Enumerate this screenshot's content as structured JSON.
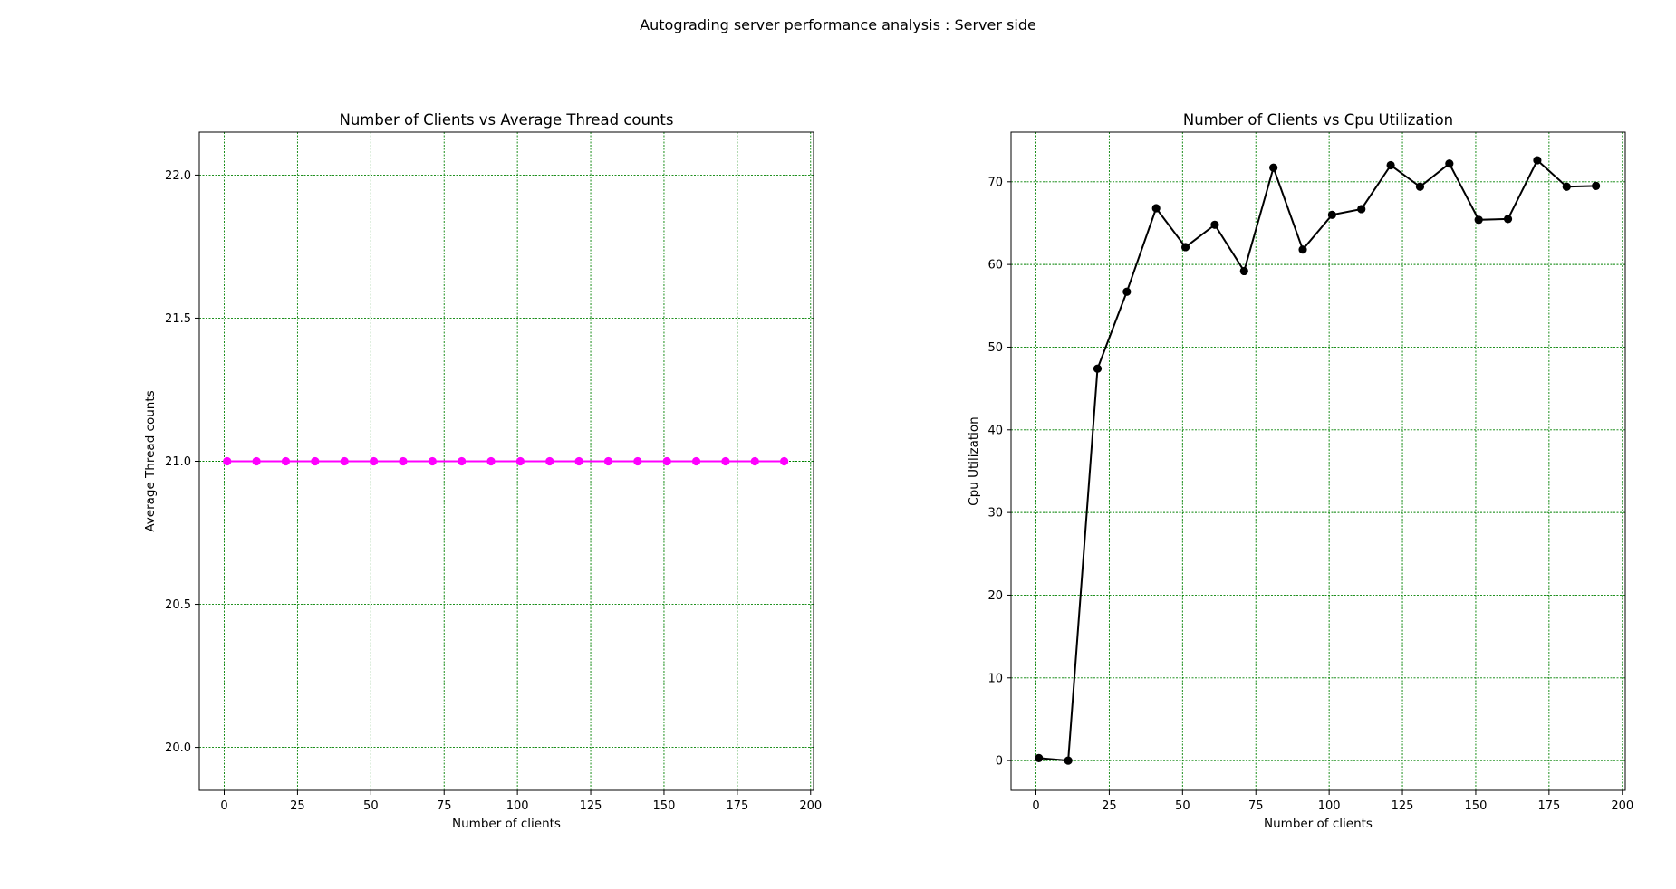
{
  "figure": {
    "suptitle": "Autograding server performance analysis : Server side",
    "grid_color": "#008000",
    "axes_color": "#000000"
  },
  "chart_data": [
    {
      "type": "line",
      "title": "Number of Clients vs Average Thread counts",
      "xlabel": "Number of clients",
      "ylabel": "Average Thread counts",
      "xlim": [
        -8.5,
        201
      ],
      "ylim": [
        19.85,
        22.15
      ],
      "xticks": [
        0,
        25,
        50,
        75,
        100,
        125,
        150,
        175,
        200
      ],
      "yticks": [
        20.0,
        20.5,
        21.0,
        21.5,
        22.0
      ],
      "ytick_labels": [
        "20.0",
        "20.5",
        "21.0",
        "21.5",
        "22.0"
      ],
      "grid": true,
      "legend": "none",
      "series": [
        {
          "color": "#ff00ff",
          "marker": "circle",
          "x": [
            1,
            11,
            21,
            31,
            41,
            51,
            61,
            71,
            81,
            91,
            101,
            111,
            121,
            131,
            141,
            151,
            161,
            171,
            181,
            191
          ],
          "y": [
            21,
            21,
            21,
            21,
            21,
            21,
            21,
            21,
            21,
            21,
            21,
            21,
            21,
            21,
            21,
            21,
            21,
            21,
            21,
            21
          ]
        }
      ]
    },
    {
      "type": "line",
      "title": "Number of Clients vs Cpu Utilization",
      "xlabel": "Number of clients",
      "ylabel": "Cpu Utilization",
      "xlim": [
        -8.5,
        201
      ],
      "ylim": [
        -3.6,
        76.0
      ],
      "xticks": [
        0,
        25,
        50,
        75,
        100,
        125,
        150,
        175,
        200
      ],
      "yticks": [
        0,
        10,
        20,
        30,
        40,
        50,
        60,
        70
      ],
      "ytick_labels": [
        "0",
        "10",
        "20",
        "30",
        "40",
        "50",
        "60",
        "70"
      ],
      "grid": true,
      "legend": "none",
      "series": [
        {
          "color": "#000000",
          "marker": "circle",
          "x": [
            1,
            11,
            21,
            31,
            41,
            51,
            61,
            71,
            81,
            91,
            101,
            111,
            121,
            131,
            141,
            151,
            161,
            171,
            181,
            191
          ],
          "y": [
            0.3,
            0.0,
            47.4,
            56.7,
            66.8,
            62.1,
            64.8,
            59.2,
            71.7,
            61.8,
            66.0,
            66.7,
            72.0,
            69.4,
            72.2,
            65.4,
            65.5,
            72.6,
            69.4,
            69.5
          ]
        }
      ]
    }
  ]
}
